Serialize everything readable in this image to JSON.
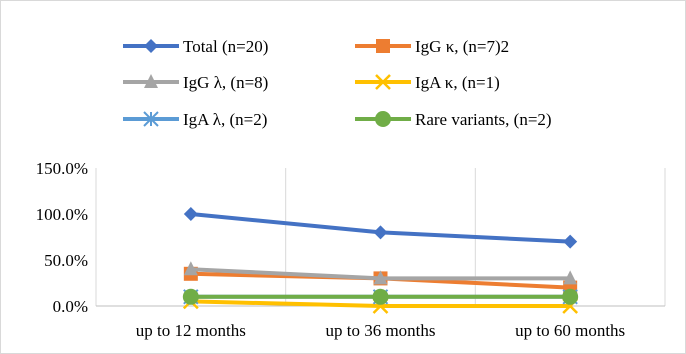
{
  "chart_data": {
    "type": "line",
    "categories": [
      "up to 12 months",
      "up to 36 months",
      "up to 60 months"
    ],
    "ylim": [
      0,
      150
    ],
    "yticks": [
      0,
      50,
      100,
      150
    ],
    "ytick_labels": [
      "0.0%",
      "50.0%",
      "100.0%",
      "150.0%"
    ],
    "grid": "vertical gridlines",
    "legend_position": "top",
    "series": [
      {
        "name": "Total (n=20)",
        "values": [
          100,
          80,
          70
        ],
        "color": "#4472C4",
        "marker": "diamond"
      },
      {
        "name": "IgG κ, (n=7)2",
        "values": [
          35,
          30,
          20
        ],
        "color": "#ED7D31",
        "marker": "square"
      },
      {
        "name": "IgG λ, (n=8)",
        "values": [
          40,
          30,
          30
        ],
        "color": "#A5A5A5",
        "marker": "triangle"
      },
      {
        "name": "IgA κ, (n=1)",
        "values": [
          5,
          0,
          0
        ],
        "color": "#FFC000",
        "marker": "x"
      },
      {
        "name": "IgA λ, (n=2)",
        "values": [
          10,
          10,
          10
        ],
        "color": "#5B9BD5",
        "marker": "asterisk"
      },
      {
        "name": "Rare variants, (n=2)",
        "values": [
          10,
          10,
          10
        ],
        "color": "#70AD47",
        "marker": "circle"
      }
    ]
  }
}
